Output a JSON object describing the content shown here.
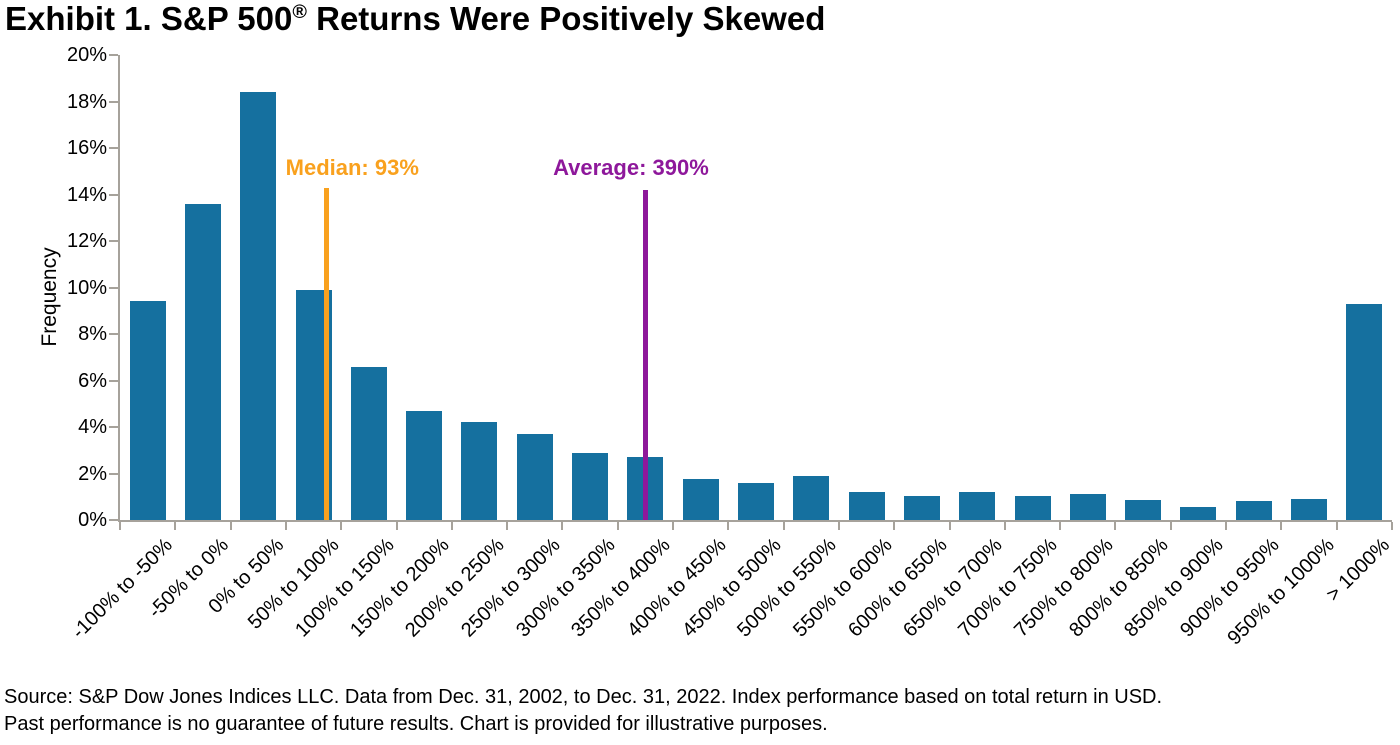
{
  "title": {
    "prefix": "Exhibit 1. S&P 500",
    "registered_mark": "®",
    "suffix": " Returns Were Positively Skewed"
  },
  "chart_data": {
    "type": "bar",
    "title": "Exhibit 1. S&P 500® Returns Were Positively Skewed",
    "ylabel": "Frequency",
    "xlabel": "",
    "ylim": [
      0,
      20
    ],
    "ytick_labels": [
      "0%",
      "2%",
      "4%",
      "6%",
      "8%",
      "10%",
      "12%",
      "14%",
      "16%",
      "18%",
      "20%"
    ],
    "grid": false,
    "legend": null,
    "bar_color": "#15709f",
    "axis_color": "#a6a29b",
    "categories": [
      "-100% to -50%",
      "-50% to 0%",
      "0% to 50%",
      "50% to 100%",
      "100% to 150%",
      "150% to 200%",
      "200% to 250%",
      "250% to 300%",
      "300% to 350%",
      "350% to 400%",
      "400% to 450%",
      "450% to 500%",
      "500% to 550%",
      "550% to 600%",
      "600% to 650%",
      "650% to 700%",
      "700% to 750%",
      "750% to 800%",
      "800% to 850%",
      "850% to 900%",
      "900% to 950%",
      "950% to 1000%",
      "> 1000%"
    ],
    "values": [
      9.4,
      13.6,
      18.4,
      9.9,
      6.6,
      4.7,
      4.2,
      3.7,
      2.9,
      2.7,
      1.75,
      1.6,
      1.9,
      1.2,
      1.05,
      1.2,
      1.05,
      1.1,
      0.85,
      0.55,
      0.8,
      0.9,
      9.3
    ],
    "annotations": [
      {
        "name": "median",
        "label": "Median: 93%",
        "value": "93%",
        "color": "#f9a11e",
        "x_bins": 3.73,
        "line_top": 14.3
      },
      {
        "name": "average",
        "label": "Average: 390%",
        "value": "390%",
        "color": "#8e189b",
        "x_bins": 9.51,
        "line_top": 14.2
      }
    ]
  },
  "source": {
    "line1": "Source: S&P Dow Jones Indices LLC. Data from Dec. 31, 2002, to Dec. 31, 2022. Index performance based on total return in USD.",
    "line2": "Past performance is no guarantee of future results. Chart is provided for illustrative purposes."
  }
}
